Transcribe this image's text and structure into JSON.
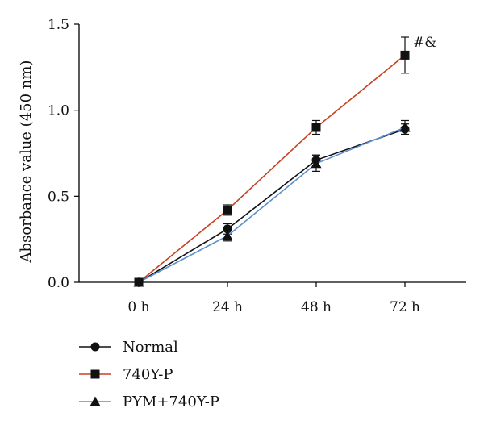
{
  "chart_data": {
    "type": "line",
    "categories": [
      "0 h",
      "24 h",
      "48 h",
      "72 h"
    ],
    "ylabel": "Absorbance value (450 nm)",
    "ylim": [
      0,
      1.5
    ],
    "yticks": [
      "0.0",
      "0.5",
      "1.0",
      "1.5"
    ],
    "grid": false,
    "legend_position": "bottom-left",
    "series": [
      {
        "name": "Normal",
        "color": "#111111",
        "marker": "circle",
        "values": [
          0.0,
          0.31,
          0.71,
          0.89
        ],
        "errors": [
          0.0,
          0.03,
          0.03,
          0.03
        ]
      },
      {
        "name": "740Y-P",
        "color": "#c8401e",
        "marker": "square",
        "values": [
          0.0,
          0.42,
          0.9,
          1.32
        ],
        "errors": [
          0.0,
          0.03,
          0.04,
          0.105
        ]
      },
      {
        "name": "PYM+740Y-P",
        "color": "#5b8fd1",
        "marker": "triangle",
        "values": [
          0.0,
          0.27,
          0.69,
          0.9
        ],
        "errors": [
          0.0,
          0.03,
          0.045,
          0.04
        ]
      }
    ],
    "annotations": [
      {
        "text": "#&",
        "series": "740Y-P",
        "category": "72 h"
      }
    ]
  }
}
